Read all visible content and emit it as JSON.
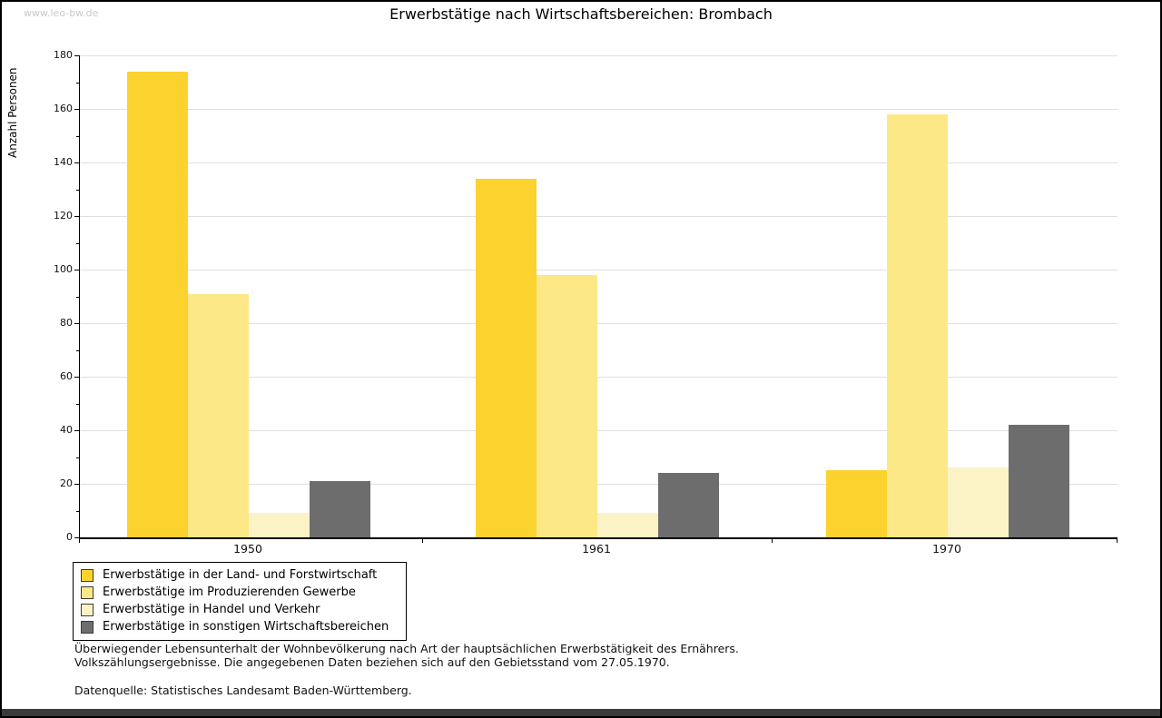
{
  "watermark": "www.leo-bw.de",
  "title": "Erwerbstätige nach Wirtschaftsbereichen: Brombach",
  "chart_data": {
    "type": "bar",
    "title": "Erwerbstätige nach Wirtschaftsbereichen: Brombach",
    "ylabel": "Anzahl Personen",
    "xlabel": "",
    "ylim": [
      0,
      180
    ],
    "ytick_step": 20,
    "yminor_step": 10,
    "grid": true,
    "legend_position": "bottom-left",
    "categories": [
      "1950",
      "1961",
      "1970"
    ],
    "series": [
      {
        "name": "Erwerbstätige in der Land- und Forstwirtschaft",
        "color": "#fbd22e",
        "values": [
          174,
          134,
          25
        ]
      },
      {
        "name": "Erwerbstätige im Produzierenden Gewerbe",
        "color": "#fce886",
        "values": [
          91,
          98,
          158
        ]
      },
      {
        "name": "Erwerbstätige in Handel und Verkehr",
        "color": "#fbf3c5",
        "values": [
          9,
          9,
          26
        ]
      },
      {
        "name": "Erwerbstätige in sonstigen Wirtschaftsbereichen",
        "color": "#6d6d6d",
        "values": [
          21,
          24,
          42
        ]
      }
    ]
  },
  "footnotes": {
    "line1": "Überwiegender Lebensunterhalt der Wohnbevölkerung nach Art der hauptsächlichen Erwerbstätigkeit des Ernährers.",
    "line2": "Volkszählungsergebnisse. Die angegebenen Daten beziehen sich auf den Gebietsstand vom 27.05.1970.",
    "source": "Datenquelle: Statistisches Landesamt Baden-Württemberg."
  }
}
